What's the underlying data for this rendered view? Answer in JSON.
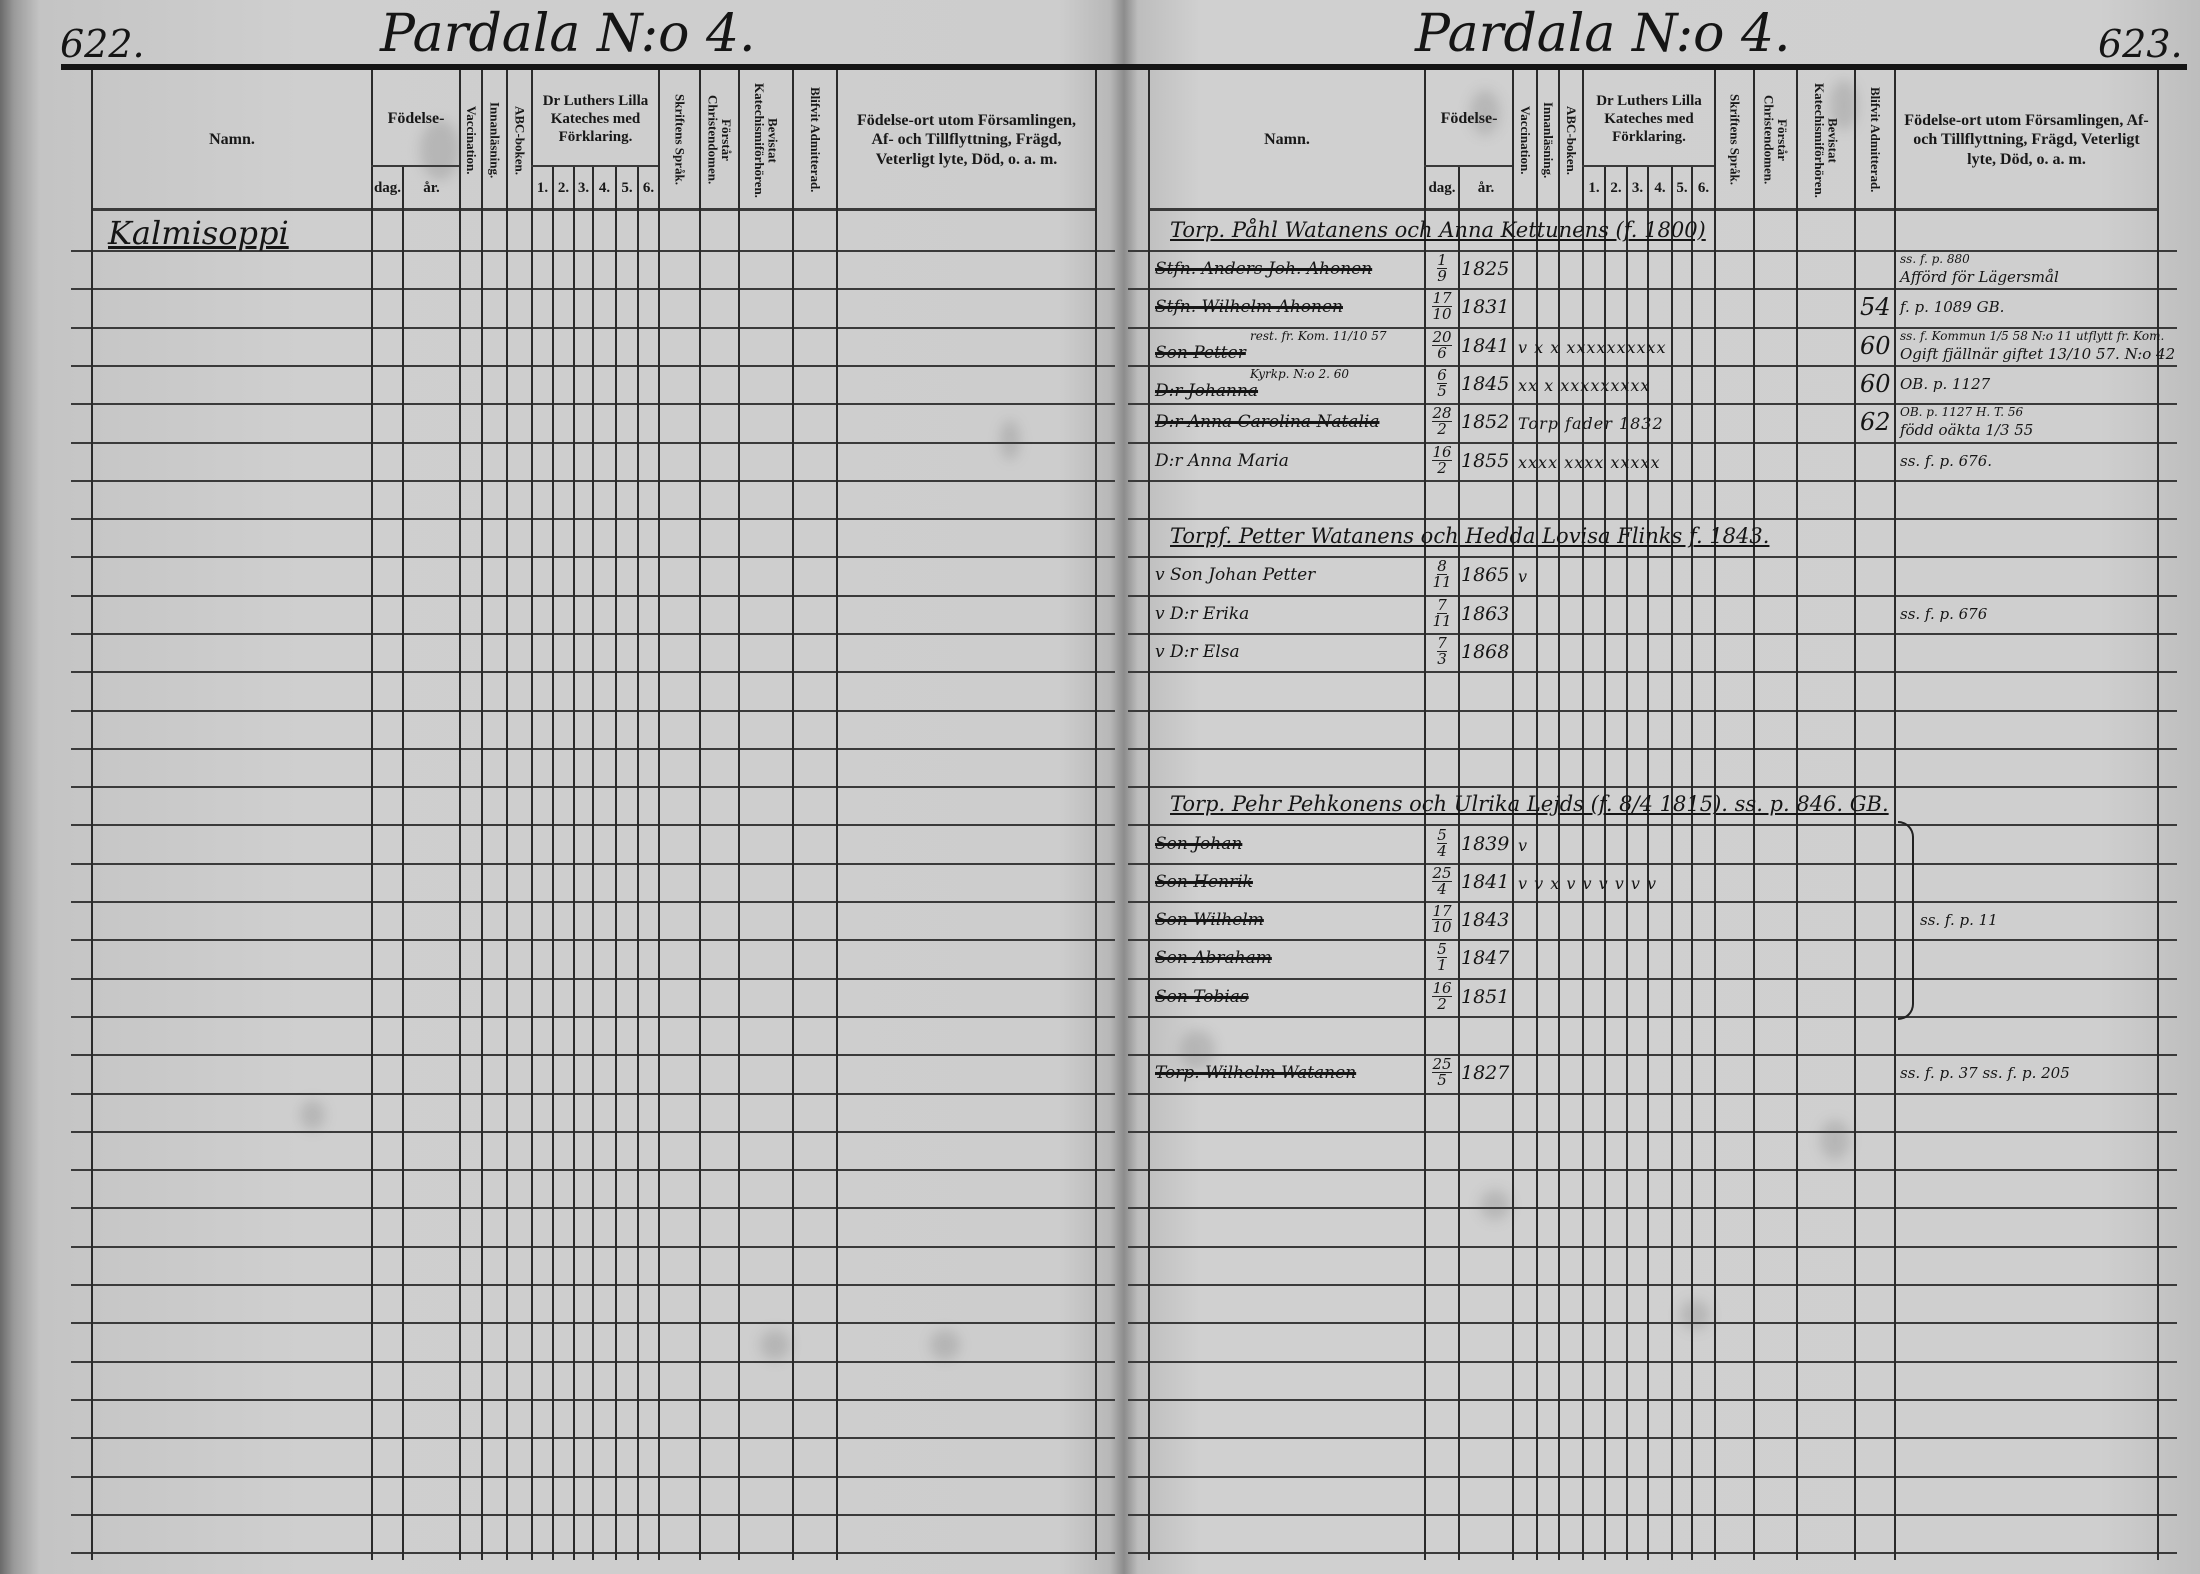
{
  "headers": {
    "namn": "Namn.",
    "fodelse": "Födelse-",
    "dag": "dag.",
    "ar": "år.",
    "vaccination": "Vaccination.",
    "innanlasning": "Innanläsning.",
    "abc": "ABC-boken.",
    "luther": "Dr Luthers Lilla Kateches med Förklaring.",
    "luther_nums": [
      "1.",
      "2.",
      "3.",
      "4.",
      "5.",
      "6."
    ],
    "skriftens": "Skriftens Språk.",
    "forstar": "Förstår Christendomen.",
    "bevistat": "Bevistat Katechismiförhören.",
    "blifvit": "Blifvit Admitterad.",
    "remarks": "Födelse-ort utom Församlingen, Af- och Tillflyttning, Frägd, Veterligt lyte, Död, o. a. m."
  },
  "left_page": {
    "number": "622.",
    "title": "Pardala N:o 4.",
    "village": "Kalmisoppi"
  },
  "right_page": {
    "number": "623.",
    "title": "Pardala N:o 4.",
    "entries": [
      {
        "type": "family",
        "text": "Torp. Påhl Watanens och Anna Kettunens (f. 1800)"
      },
      {
        "name": "Stfn. Anders Joh. Ahonen",
        "struck": true,
        "day": [
          "1",
          "9"
        ],
        "year": "1825",
        "marks": "",
        "admitted": "",
        "remark": "Afförd för Lägersmål",
        "remark_note": "ss. f. p. 880"
      },
      {
        "name": "Stfn. Wilhelm Ahonen",
        "struck": true,
        "day": [
          "17",
          "10"
        ],
        "year": "1831",
        "marks": "",
        "admitted": "54",
        "remark": "f. p. 1089 GB."
      },
      {
        "name": "Son Petter",
        "struck": true,
        "name_note": "rest. fr. Kom. 11/10 57",
        "day": [
          "20",
          "6"
        ],
        "year": "1841",
        "marks": "v x x xxxxxxxxxx",
        "admitted": "60",
        "remark": "Ogift fjällnär giftet 13/10 57. N:o 42",
        "remark_note": "ss. f. Kommun 1/5 58 N:o 11 utflytt fr. Kom."
      },
      {
        "name": "D:r Johanna",
        "struck": true,
        "name_note": "Kyrkp. N:o 2. 60",
        "day": [
          "6",
          "5"
        ],
        "year": "1845",
        "marks": "xx x xxxxxxxxx",
        "admitted": "60",
        "remark": "OB. p. 1127"
      },
      {
        "name": "D:r Anna Carolina Natalia",
        "struck": true,
        "day": [
          "28",
          "2"
        ],
        "year": "1852",
        "marks": "Torp fader 1832",
        "admitted": "62",
        "remark": "född oäkta 1/3 55",
        "remark_note": "OB. p. 1127 H. T. 56"
      },
      {
        "name": "D:r Anna Maria",
        "struck": false,
        "day": [
          "16",
          "2"
        ],
        "year": "1855",
        "marks": "xxxx xxxx xxxxx",
        "admitted": "",
        "remark": "ss. f. p. 676."
      },
      {
        "type": "family",
        "text": "Torpf. Petter Watanens och Hedda Lovisa Flinks f. 1843."
      },
      {
        "name": "v Son Johan Petter",
        "struck": false,
        "day": [
          "8",
          "11"
        ],
        "year": "1865",
        "marks": "v",
        "admitted": "",
        "remark": ""
      },
      {
        "name": "v D:r Erika",
        "struck": false,
        "day": [
          "7",
          "11"
        ],
        "year": "1863",
        "marks": "",
        "admitted": "",
        "remark": "ss. f. p. 676"
      },
      {
        "name": "v D:r Elsa",
        "struck": false,
        "day": [
          "7",
          "3"
        ],
        "year": "1868",
        "marks": "",
        "admitted": "",
        "remark": ""
      },
      {
        "type": "family",
        "text": "Torp. Pehr Pehkonens och Ulrika Lejds (f. 8/4 1815). ss. p. 846. GB."
      },
      {
        "name": "Son Johan",
        "struck": true,
        "day": [
          "5",
          "4"
        ],
        "year": "1839",
        "marks": "v",
        "admitted": "",
        "remark": ""
      },
      {
        "name": "Son Henrik",
        "struck": true,
        "day": [
          "25",
          "4"
        ],
        "year": "1841",
        "marks": "v v x v v v v v v",
        "admitted": "",
        "remark": ""
      },
      {
        "name": "Son Wilhelm",
        "struck": true,
        "day": [
          "17",
          "10"
        ],
        "year": "1843",
        "marks": "",
        "admitted": "",
        "remark": "ss. f. p. 11",
        "brace": true
      },
      {
        "name": "Son Abraham",
        "struck": true,
        "day": [
          "5",
          "1"
        ],
        "year": "1847",
        "marks": "",
        "admitted": "",
        "remark": ""
      },
      {
        "name": "Son Tobias",
        "struck": true,
        "day": [
          "16",
          "2"
        ],
        "year": "1851",
        "marks": "",
        "admitted": "",
        "remark": ""
      },
      {
        "name": "Torp. Wilhelm Watanen",
        "struck": true,
        "day": [
          "25",
          "5"
        ],
        "year": "1827",
        "marks": "",
        "admitted": "",
        "remark": "ss. f. p. 37 ss. f. p. 205"
      }
    ]
  }
}
